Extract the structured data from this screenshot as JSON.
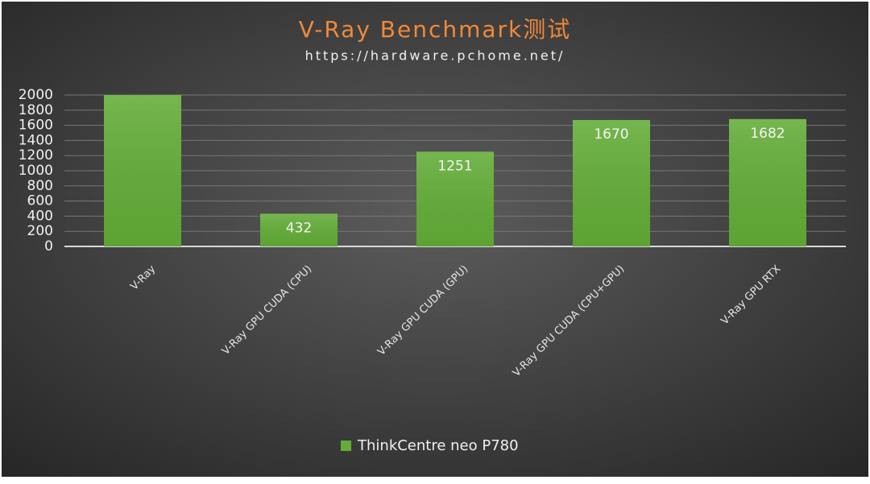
{
  "chart_data": {
    "type": "bar",
    "title": "V-Ray Benchmark测试",
    "subtitle": "https://hardware.pchome.net/",
    "categories": [
      "V-Ray",
      "V-Ray GPU CUDA (CPU)",
      "V-Ray GPU CUDA (GPU)",
      "V-Ray GPU CUDA (CPU+GPU)",
      "V-Ray GPU RTX"
    ],
    "series": [
      {
        "name": "ThinkCentre neo P780",
        "color": "#63ad37",
        "values": [
          2000,
          432,
          1251,
          1670,
          1682
        ],
        "value_labels": [
          null,
          "432",
          "1251",
          "1670",
          "1682"
        ]
      }
    ],
    "ylim": [
      0,
      2000
    ],
    "yticks": [
      0,
      200,
      400,
      600,
      800,
      1000,
      1200,
      1400,
      1600,
      1800,
      2000
    ],
    "grid": true,
    "legend": "bottom"
  }
}
